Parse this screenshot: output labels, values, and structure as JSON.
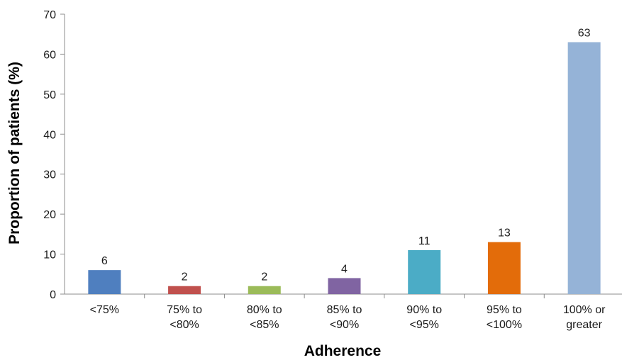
{
  "chart_data": {
    "type": "bar",
    "xlabel": "Adherence",
    "ylabel": "Proportion of patients (%)",
    "ylim": [
      0,
      70
    ],
    "yticks": [
      0,
      10,
      20,
      30,
      40,
      50,
      60,
      70
    ],
    "grid": false,
    "categories": [
      [
        "<75%"
      ],
      [
        "75% to",
        "<80%"
      ],
      [
        "80% to",
        "<85%"
      ],
      [
        "85% to",
        "<90%"
      ],
      [
        "90% to",
        "<95%"
      ],
      [
        "95% to",
        "<100%"
      ],
      [
        "100% or",
        "greater"
      ]
    ],
    "values": [
      6,
      2,
      2,
      4,
      11,
      13,
      63
    ],
    "colors": [
      "#4f7fbf",
      "#c0504d",
      "#9bbb59",
      "#8064a2",
      "#4bacc6",
      "#e36c0a",
      "#95b3d7"
    ]
  }
}
